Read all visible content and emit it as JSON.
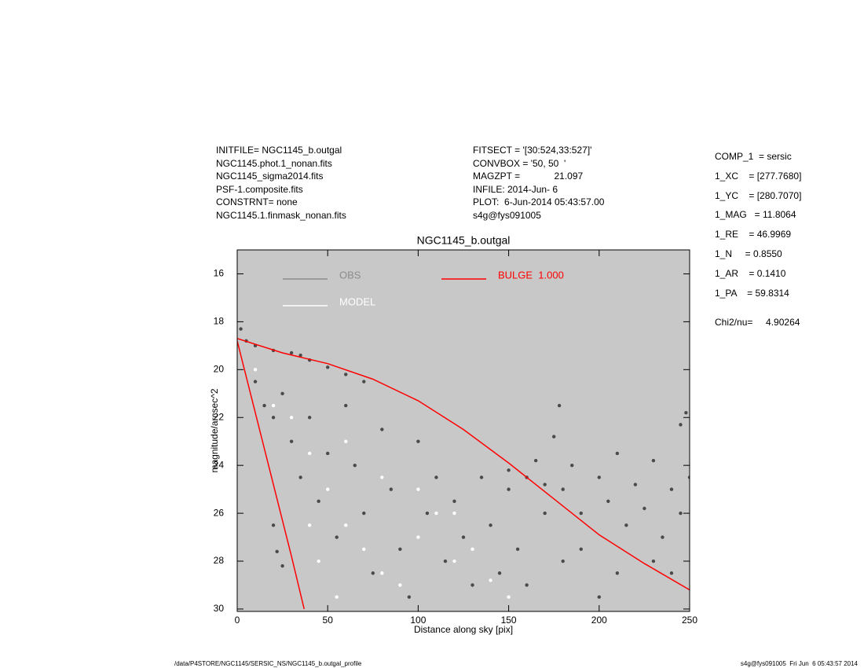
{
  "header": {
    "left": [
      "INITFILE= NGC1145_b.outgal",
      "NGC1145.phot.1_nonan.fits",
      "NGC1145_sigma2014.fits",
      "PSF-1.composite.fits",
      "CONSTRNT= none",
      "NGC1145.1.finmask_nonan.fits"
    ],
    "middle": [
      "FITSECT = '[30:524,33:527]'",
      "CONVBOX = '50, 50  '",
      "MAGZPT =             21.097",
      "INFILE: 2014-Jun- 6",
      "PLOT:  6-Jun-2014 05:43:57.00",
      "s4g@fys091005"
    ],
    "right": [
      "COMP_1  = sersic",
      "1_XC    = [277.7680]",
      "1_YC    = [280.7070]",
      "1_MAG   = 11.8064",
      "1_RE    = 46.9969",
      "1_N     = 0.8550",
      "1_AR    = 0.1410",
      "1_PA    = 59.8314"
    ],
    "chi": "Chi2/nu=     4.90264"
  },
  "footer": {
    "left": "/data/P4STORE/NGC1145/SERSIC_NS/NGC1145_b.outgal_profile",
    "right": "s4g@fys091005  Fri Jun  6 05:43:57 2014"
  },
  "chart_data": {
    "type": "scatter",
    "title": "NGC1145_b.outgal",
    "xlabel": "Distance along sky [pix]",
    "ylabel": "magnitude/arcsec^2",
    "xlim": [
      0,
      250
    ],
    "ylim": [
      15,
      30.1
    ],
    "y_inverted": true,
    "xticks": [
      0,
      50,
      100,
      150,
      200,
      250
    ],
    "yticks": [
      16,
      18,
      20,
      22,
      24,
      26,
      28,
      30
    ],
    "background": "#c8c8c8",
    "series": [
      {
        "name": "OBS",
        "color": "#4a4a4a",
        "legend_color": "#8c8c8c",
        "mode": "points",
        "x": [
          2,
          5,
          10,
          20,
          30,
          35,
          40,
          50,
          60,
          70,
          10,
          15,
          20,
          25,
          30,
          35,
          40,
          45,
          50,
          55,
          60,
          65,
          70,
          75,
          80,
          85,
          90,
          95,
          100,
          105,
          110,
          115,
          120,
          125,
          130,
          135,
          140,
          145,
          150,
          155,
          160,
          170,
          180,
          190,
          200,
          210,
          20,
          22,
          25,
          175,
          178,
          245,
          248,
          150,
          160,
          165,
          170,
          180,
          185,
          190,
          200,
          205,
          210,
          215,
          220,
          225,
          230,
          235,
          240,
          245,
          250,
          230,
          240
        ],
        "y": [
          18.3,
          18.8,
          19.0,
          19.2,
          19.3,
          19.4,
          19.6,
          19.9,
          20.2,
          20.5,
          20.5,
          21.5,
          22.0,
          21.0,
          23.0,
          24.5,
          22.0,
          25.5,
          23.5,
          27.0,
          21.5,
          24.0,
          26.0,
          28.5,
          22.5,
          25.0,
          27.5,
          29.5,
          23.0,
          26.0,
          24.5,
          28.0,
          25.5,
          27.0,
          29.0,
          24.5,
          26.5,
          28.5,
          25.0,
          27.5,
          29.0,
          26.0,
          28.0,
          27.5,
          29.5,
          28.5,
          26.5,
          27.6,
          28.2,
          22.8,
          21.5,
          22.3,
          21.8,
          24.2,
          24.5,
          23.8,
          24.8,
          25.0,
          24.0,
          26.0,
          24.5,
          25.5,
          23.5,
          26.5,
          24.8,
          25.8,
          23.8,
          27.0,
          25.0,
          26.0,
          24.5,
          28.0,
          28.5
        ]
      },
      {
        "name": "MODEL",
        "color": "#ffffff",
        "legend_color": "#ffffff",
        "mode": "points",
        "x": [
          10,
          20,
          30,
          40,
          50,
          60,
          70,
          80,
          90,
          100,
          110,
          120,
          130,
          140,
          150,
          60,
          80,
          100,
          120,
          45,
          55,
          40
        ],
        "y": [
          20.0,
          21.5,
          22.0,
          23.5,
          25.0,
          26.5,
          27.5,
          28.5,
          29.0,
          27.0,
          26.0,
          28.0,
          27.5,
          28.8,
          29.5,
          23.0,
          24.5,
          25.0,
          26.0,
          28.0,
          29.5,
          26.5
        ]
      },
      {
        "name": "BULGE  1.000",
        "color": "#ff0000",
        "legend_color": "#ff0000",
        "mode": "line",
        "x": [
          0,
          25,
          50,
          75,
          100,
          125,
          150,
          175,
          200,
          225,
          250,
          null,
          0,
          10,
          20,
          30,
          37
        ],
        "y": [
          18.7,
          19.3,
          19.75,
          20.4,
          21.3,
          22.5,
          23.9,
          25.4,
          26.9,
          28.1,
          29.2,
          null,
          18.8,
          21.8,
          24.8,
          27.8,
          30.0
        ]
      }
    ]
  }
}
